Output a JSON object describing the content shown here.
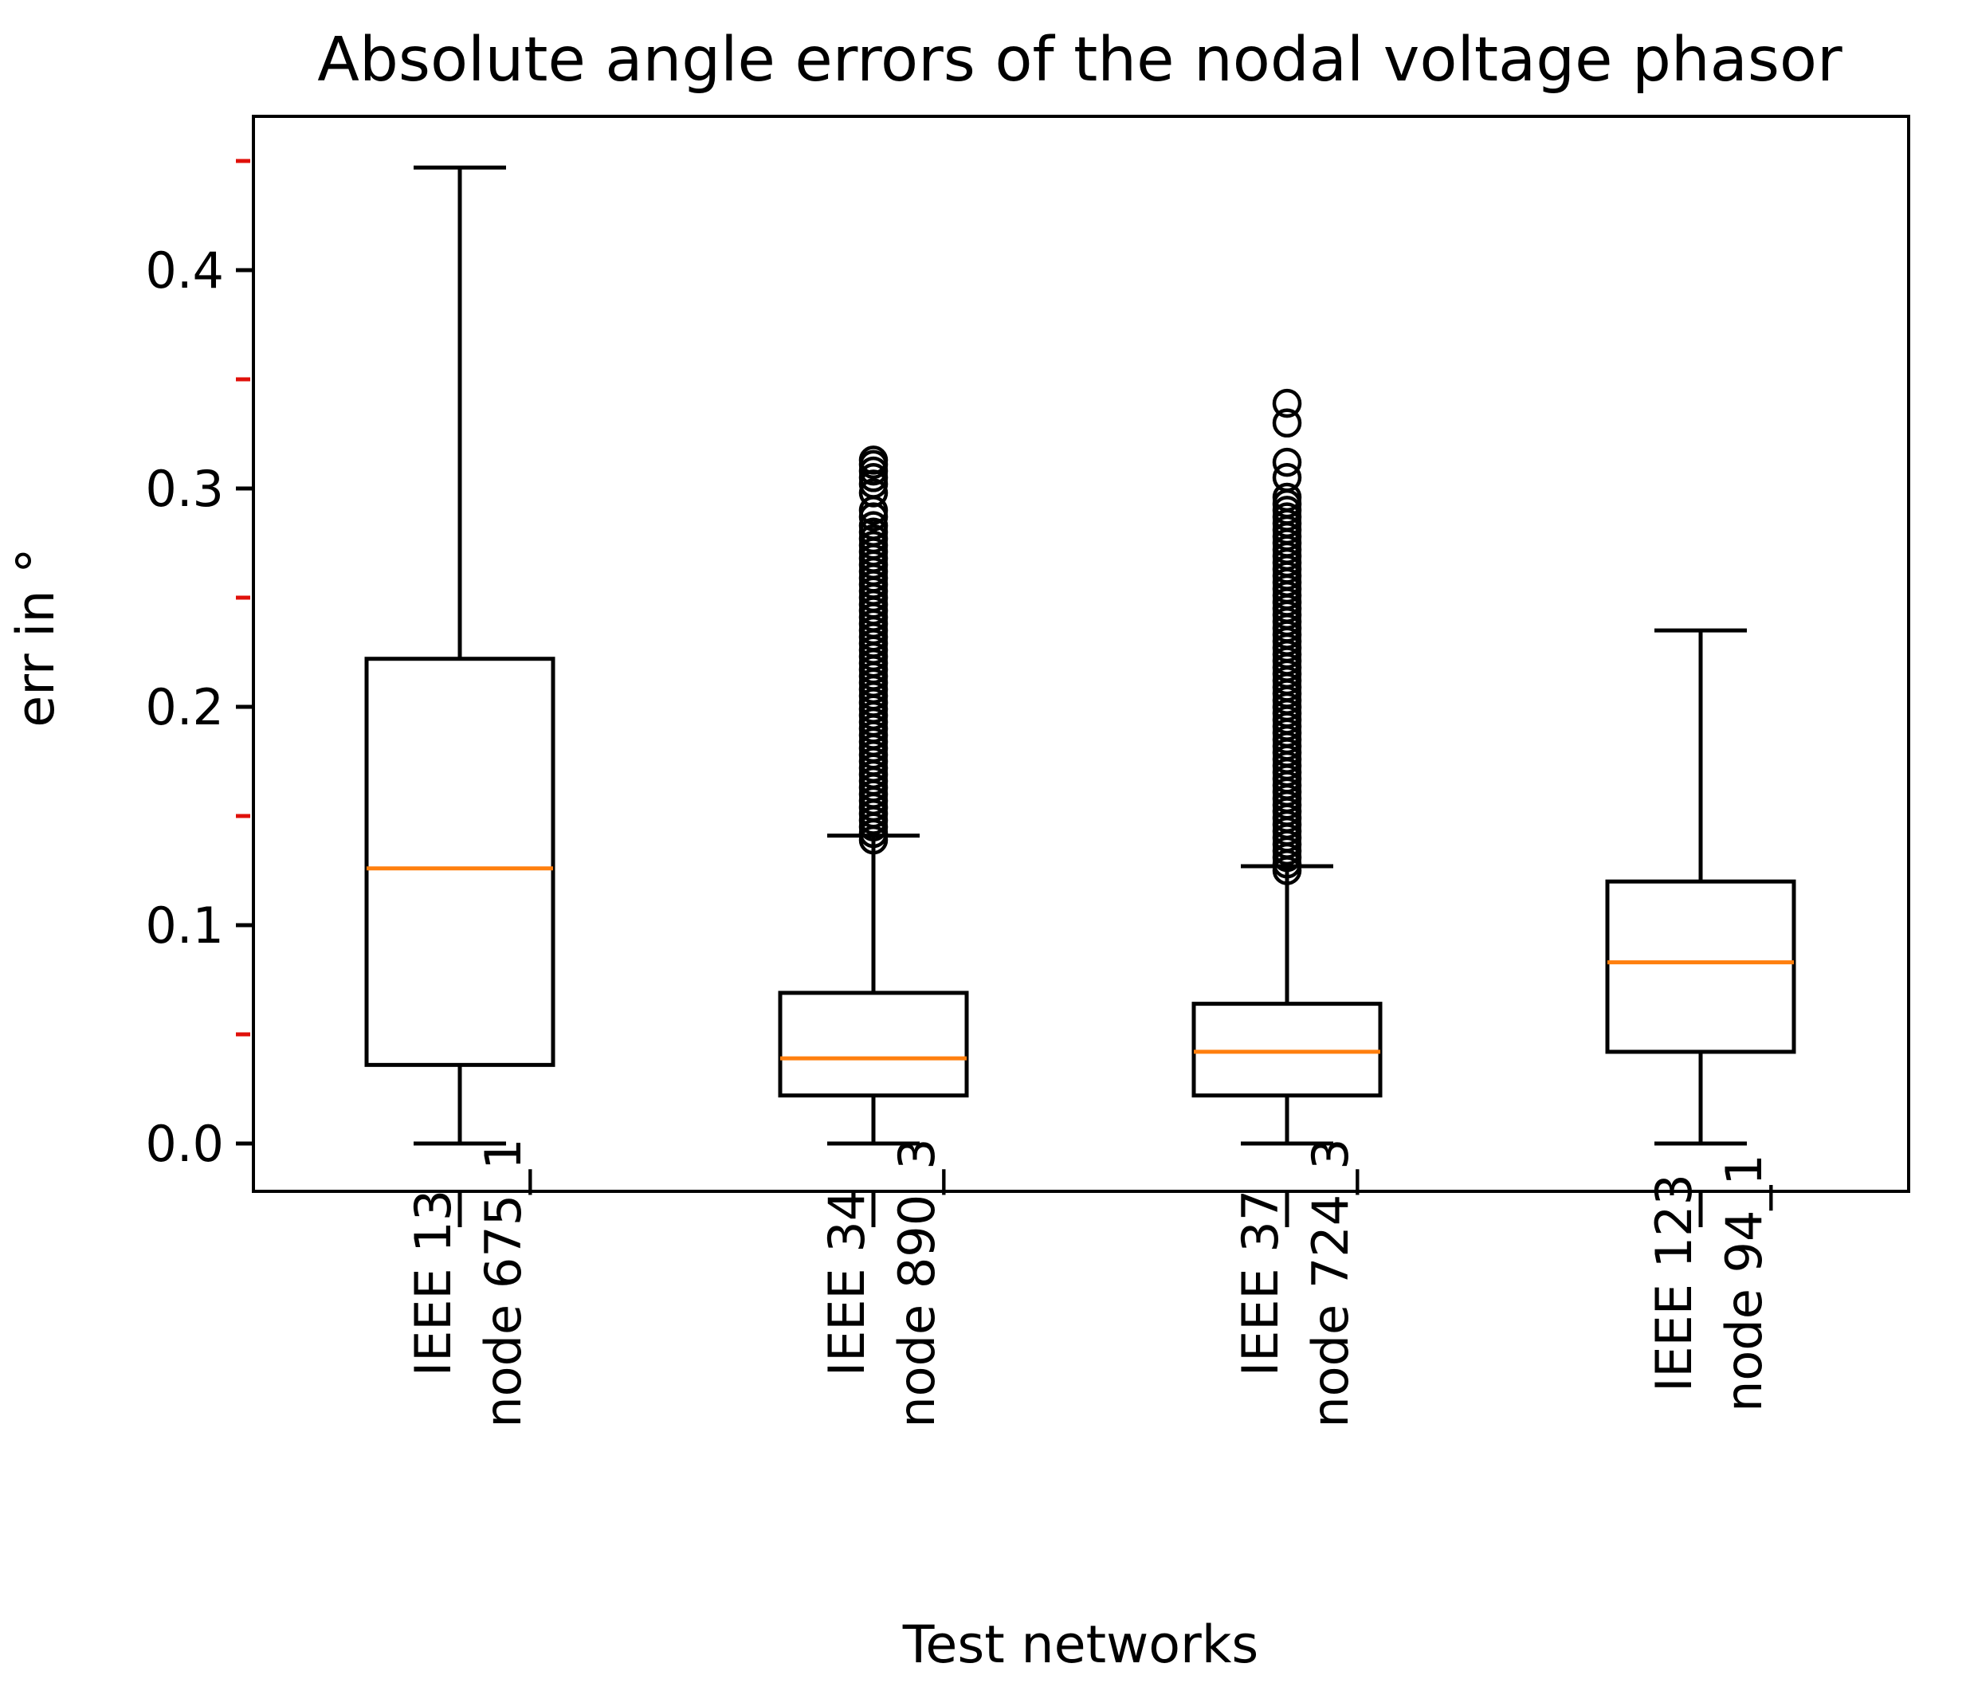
{
  "chart_data": {
    "type": "boxplot",
    "title": "Absolute angle errors of the nodal voltage phasor",
    "xlabel": "Test networks",
    "ylabel": "err in °",
    "ylim": [
      -0.022,
      0.47
    ],
    "yticks": [
      {
        "value": 0.0,
        "label": "0.0"
      },
      {
        "value": 0.1,
        "label": "0.1"
      },
      {
        "value": 0.2,
        "label": "0.2"
      },
      {
        "value": 0.3,
        "label": "0.3"
      },
      {
        "value": 0.4,
        "label": "0.4"
      }
    ],
    "y_minor_ticks": [
      0.05,
      0.15,
      0.25,
      0.35,
      0.45
    ],
    "y_minor_tick_color": "#e0100a",
    "median_color": "#ff7f0e",
    "categories": [
      {
        "label_line1": "IEEE 13",
        "label_line2": "node 675_1",
        "whisker_low": 0.0,
        "q1": 0.036,
        "median": 0.126,
        "q3": 0.222,
        "whisker_high": 0.447,
        "outliers": []
      },
      {
        "label_line1": "IEEE 34",
        "label_line2": "node 890_3",
        "whisker_low": 0.0,
        "q1": 0.022,
        "median": 0.039,
        "q3": 0.069,
        "whisker_high": 0.141,
        "outliers": [
          0.139,
          0.142,
          0.145,
          0.148,
          0.151,
          0.154,
          0.157,
          0.16,
          0.163,
          0.166,
          0.169,
          0.172,
          0.175,
          0.178,
          0.181,
          0.184,
          0.187,
          0.19,
          0.193,
          0.196,
          0.199,
          0.202,
          0.205,
          0.208,
          0.211,
          0.214,
          0.217,
          0.22,
          0.223,
          0.226,
          0.229,
          0.232,
          0.235,
          0.238,
          0.241,
          0.244,
          0.247,
          0.25,
          0.253,
          0.256,
          0.259,
          0.262,
          0.265,
          0.268,
          0.271,
          0.274,
          0.277,
          0.28,
          0.283,
          0.287,
          0.29,
          0.298,
          0.302,
          0.305,
          0.308,
          0.311,
          0.313
        ]
      },
      {
        "label_line1": "IEEE 37",
        "label_line2": "node 724_3",
        "whisker_low": 0.0,
        "q1": 0.022,
        "median": 0.042,
        "q3": 0.064,
        "whisker_high": 0.127,
        "outliers": [
          0.125,
          0.128,
          0.131,
          0.134,
          0.137,
          0.14,
          0.143,
          0.146,
          0.149,
          0.152,
          0.155,
          0.158,
          0.161,
          0.164,
          0.167,
          0.17,
          0.173,
          0.176,
          0.179,
          0.182,
          0.185,
          0.188,
          0.191,
          0.194,
          0.197,
          0.2,
          0.203,
          0.206,
          0.209,
          0.212,
          0.215,
          0.218,
          0.221,
          0.224,
          0.227,
          0.23,
          0.233,
          0.236,
          0.239,
          0.242,
          0.245,
          0.248,
          0.251,
          0.254,
          0.257,
          0.26,
          0.263,
          0.266,
          0.269,
          0.272,
          0.275,
          0.278,
          0.281,
          0.284,
          0.287,
          0.29,
          0.293,
          0.296,
          0.305,
          0.312,
          0.33,
          0.339
        ]
      },
      {
        "label_line1": "IEEE 123",
        "label_line2": "node 94_1",
        "whisker_low": 0.0,
        "q1": 0.042,
        "median": 0.083,
        "q3": 0.12,
        "whisker_high": 0.235,
        "outliers": []
      }
    ]
  }
}
